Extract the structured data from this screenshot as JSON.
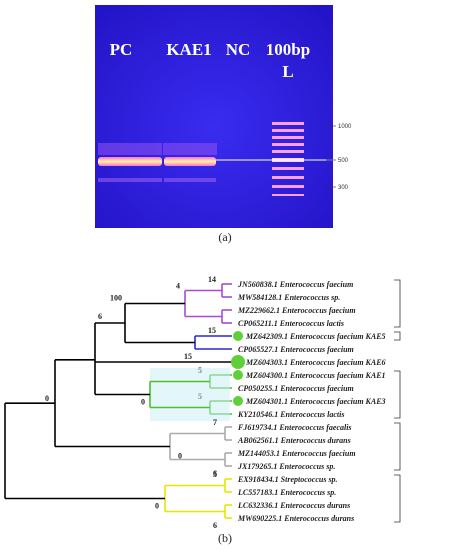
{
  "panel_a": {
    "lanes": [
      [
        "PC"
      ],
      [
        "KAE1"
      ],
      [
        "NC"
      ],
      [
        "100bp",
        "L"
      ]
    ],
    "markers": [
      "1000",
      "500",
      "300"
    ],
    "caption": "(a)"
  },
  "panel_b": {
    "caption": "(b)",
    "leaves": [
      "JN560838.1 Enterococcus faecium",
      "MW584128.1 Enterococcus sp.",
      "MZ229662.1 Enterococcus faecium",
      "CP065211.1 Enterococcus lactis",
      "MZ642309.1 Enterococcus faecium KAE5",
      "CP065527.1 Enterococcus faecium",
      "MZ604303.1 Enterococcus faecium KAE6",
      "MZ604300.1 Enterococcus faecium KAE1",
      "CP050255.1 Enterococcus faecium",
      "MZ604301.1 Enterococcus faecium KAE3",
      "KY210546.1 Enterococcus lactis",
      "FJ619734.1 Enterococcus faecalis",
      "AB062561.1 Enterococcus durans",
      "MZ144053.1 Enterococcus faecium",
      "JX179265.1 Enterococcus sp.",
      "EX918434.1 Streptococcus sp.",
      "LC557183.1 Enterococcus sp.",
      "LC632336.1 Enterococcus durans",
      "MW690225.1 Enterococcus durans"
    ],
    "node_labels": [
      "14",
      "15",
      "4",
      "15",
      "100",
      "5",
      "5",
      "0",
      "6",
      "7",
      "6",
      "0",
      "0",
      "5",
      "6",
      "0",
      "0"
    ]
  }
}
